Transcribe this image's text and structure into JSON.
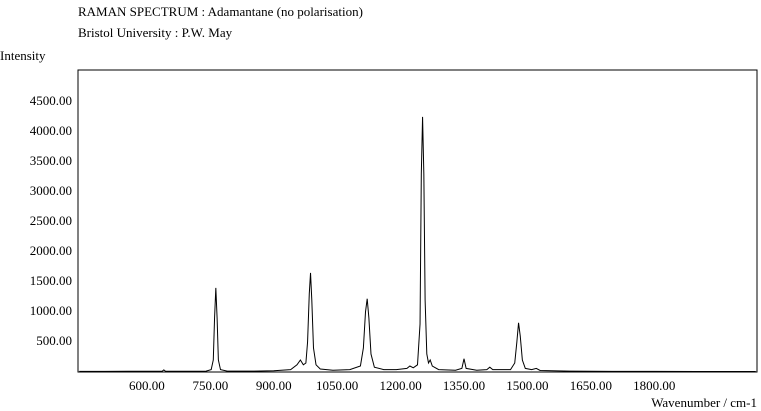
{
  "chart_data": {
    "type": "line",
    "title": "RAMAN SPECTRUM : Adamantane (no polarisation)",
    "subtitle": "Bristol University : P.W. May",
    "y_label": "Intensity",
    "x_label": "Wavenumber / cm-1",
    "xlim": [
      437,
      2043
    ],
    "ylim": [
      0,
      5030
    ],
    "xticks": [
      {
        "value": 600,
        "label": "600.00"
      },
      {
        "value": 750,
        "label": "750.00"
      },
      {
        "value": 900,
        "label": "900.00"
      },
      {
        "value": 1050,
        "label": "1050.00"
      },
      {
        "value": 1200,
        "label": "1200.00"
      },
      {
        "value": 1350,
        "label": "1350.00"
      },
      {
        "value": 1500,
        "label": "1500.00"
      },
      {
        "value": 1650,
        "label": "1650.00"
      },
      {
        "value": 1800,
        "label": "1800.00"
      }
    ],
    "yticks": [
      {
        "value": 500,
        "label": "500.00"
      },
      {
        "value": 1000,
        "label": "1000.00"
      },
      {
        "value": 1500,
        "label": "1500.00"
      },
      {
        "value": 2000,
        "label": "2000.00"
      },
      {
        "value": 2500,
        "label": "2500.00"
      },
      {
        "value": 3000,
        "label": "3000.00"
      },
      {
        "value": 3500,
        "label": "3500.00"
      },
      {
        "value": 4000,
        "label": "4000.00"
      },
      {
        "value": 4500,
        "label": "4500.00"
      }
    ],
    "grid": false,
    "color": "#000000",
    "x": [
      440,
      500,
      560,
      600,
      636,
      640,
      644,
      700,
      740,
      752,
      757,
      760,
      763,
      766,
      769,
      774,
      790,
      850,
      900,
      940,
      955,
      963,
      970,
      976,
      980,
      984,
      987,
      990,
      994,
      1000,
      1010,
      1040,
      1080,
      1105,
      1112,
      1117,
      1121,
      1125,
      1130,
      1138,
      1160,
      1190,
      1215,
      1222,
      1230,
      1240,
      1246,
      1249,
      1252,
      1255,
      1258,
      1262,
      1266,
      1270,
      1275,
      1290,
      1330,
      1345,
      1350,
      1355,
      1380,
      1404,
      1411,
      1418,
      1460,
      1470,
      1475,
      1479,
      1483,
      1488,
      1495,
      1510,
      1521,
      1530,
      1600,
      1700,
      1800,
      1900,
      2000,
      2040
    ],
    "values": [
      10,
      10,
      12,
      12,
      12,
      35,
      12,
      12,
      15,
      40,
      200,
      900,
      1400,
      900,
      200,
      40,
      15,
      15,
      20,
      40,
      120,
      200,
      120,
      150,
      500,
      1300,
      1650,
      1200,
      400,
      120,
      50,
      30,
      40,
      100,
      400,
      1000,
      1220,
      900,
      300,
      80,
      40,
      40,
      60,
      100,
      70,
      120,
      800,
      3300,
      4250,
      3300,
      1200,
      300,
      150,
      200,
      100,
      40,
      30,
      60,
      220,
      60,
      30,
      40,
      80,
      40,
      40,
      150,
      500,
      820,
      600,
      200,
      60,
      40,
      60,
      25,
      15,
      10,
      10,
      8,
      8,
      8
    ]
  }
}
